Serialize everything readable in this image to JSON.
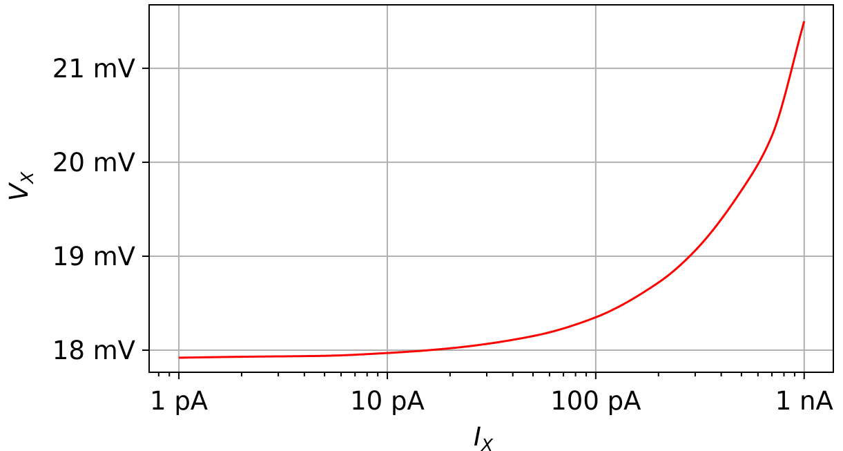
{
  "chart_data": {
    "type": "line",
    "xscale": "log",
    "xlabel": {
      "main": "I",
      "sub": "X"
    },
    "ylabel": {
      "main": "V",
      "sub": "X"
    },
    "x_ticks": [
      {
        "value": 1e-12,
        "label": "1 pA"
      },
      {
        "value": 1e-11,
        "label": "10 pA"
      },
      {
        "value": 1e-10,
        "label": "100 pA"
      },
      {
        "value": 1e-09,
        "label": "1 nA"
      }
    ],
    "y_ticks": [
      {
        "value": 0.018,
        "label": "18 mV"
      },
      {
        "value": 0.019,
        "label": "19 mV"
      },
      {
        "value": 0.02,
        "label": "20 mV"
      },
      {
        "value": 0.021,
        "label": "21 mV"
      }
    ],
    "xlim": [
      7.2e-13,
      1.38e-09
    ],
    "ylim": [
      0.017765,
      0.021675
    ],
    "grid": true,
    "series": [
      {
        "color": "#ff0000",
        "x": [
          1e-12,
          2e-12,
          5e-12,
          1e-11,
          2e-11,
          5e-11,
          1e-10,
          2e-10,
          3e-10,
          5e-10,
          7e-10,
          1e-09
        ],
        "y": [
          0.01792,
          0.01793,
          0.01794,
          0.01797,
          0.01802,
          0.01815,
          0.01835,
          0.01872,
          0.01906,
          0.0197,
          0.02028,
          0.0215
        ]
      }
    ]
  }
}
